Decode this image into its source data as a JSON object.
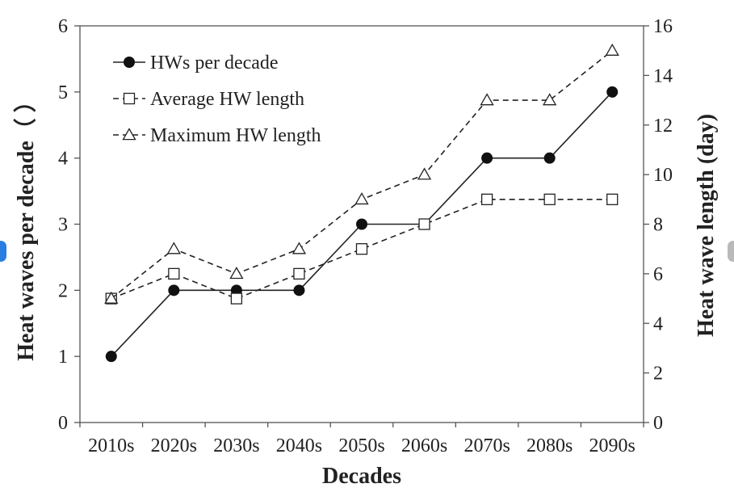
{
  "colors": {
    "edge_left": "#2a7de1",
    "edge_right": "#b9b9b9",
    "ink": "#222222",
    "axis": "#555555"
  },
  "chart_data": {
    "type": "line",
    "categories": [
      "2010s",
      "2020s",
      "2030s",
      "2040s",
      "2050s",
      "2060s",
      "2070s",
      "2080s",
      "2090s"
    ],
    "xlabel": "Decades",
    "ylabel_left": "Heat waves per decade（ ）",
    "ylabel_right": "Heat wave length (day)",
    "ylim_left": [
      0,
      6
    ],
    "ylim_right": [
      0,
      16
    ],
    "yticks_left": [
      "0",
      "1",
      "2",
      "3",
      "4",
      "5",
      "6"
    ],
    "yticks_right": [
      "0",
      "2",
      "4",
      "6",
      "8",
      "10",
      "12",
      "14",
      "16"
    ],
    "legend_position": "top-left",
    "grid": false,
    "series": [
      {
        "name": "HWs per decade",
        "axis": "left",
        "style": "solid",
        "marker": "filled-circle",
        "values": [
          1,
          2,
          2,
          2,
          3,
          3,
          4,
          4,
          5
        ]
      },
      {
        "name": "Average HW length",
        "axis": "right",
        "style": "dashed",
        "marker": "open-square",
        "values": [
          5,
          6,
          5,
          6,
          7,
          8,
          9,
          9,
          9
        ]
      },
      {
        "name": "Maximum HW length",
        "axis": "right",
        "style": "dashed",
        "marker": "open-triangle",
        "values": [
          5,
          7,
          6,
          7,
          9,
          10,
          13,
          13,
          15
        ]
      }
    ]
  }
}
